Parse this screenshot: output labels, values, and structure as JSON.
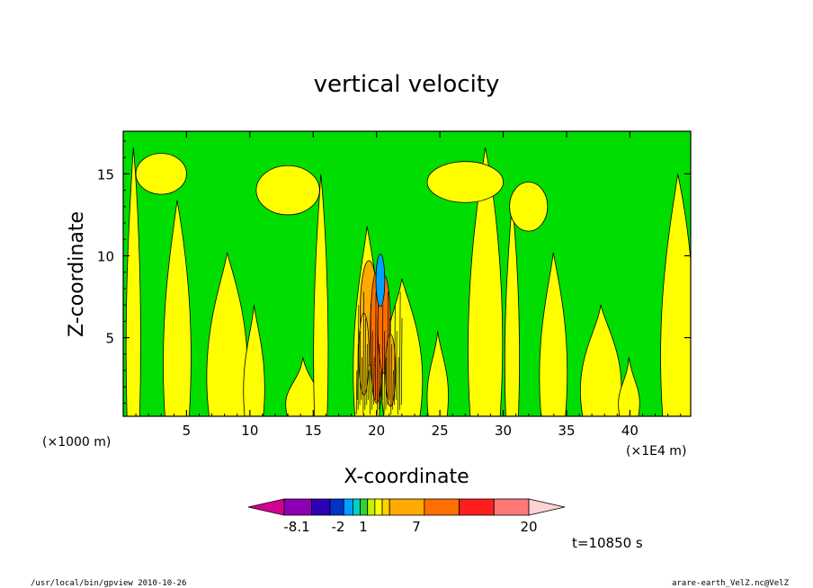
{
  "chart_data": {
    "type": "heatmap",
    "title": "vertical velocity",
    "xlabel": "X-coordinate",
    "ylabel": "Z-coordinate",
    "x_unit_left": "(×1000 m)",
    "x_unit_right": "(×1E4 m)",
    "x_ticks": [
      5,
      10,
      15,
      20,
      25,
      30,
      35,
      40
    ],
    "y_ticks": [
      5,
      10,
      15
    ],
    "xlim": [
      0,
      44.8
    ],
    "ylim": [
      0.2,
      17.6
    ],
    "colorbar": {
      "colors": [
        "#d4008f",
        "#8c00b4",
        "#2d00b4",
        "#0032c8",
        "#00a0ff",
        "#00d2c8",
        "#32d232",
        "#c8f000",
        "#ffff00",
        "#ffd200",
        "#ffaa00",
        "#ff6e00",
        "#ff1e1e",
        "#ff7878",
        "#ffb4b4",
        "#ffd2d2"
      ],
      "labels": [
        "-8.1",
        "-2",
        "1",
        "7",
        "20"
      ]
    },
    "time_label": "t=10850 s",
    "regions": {
      "background_color": "#00dd00",
      "positive_color": "#ffff00",
      "strong_color": "#ff9900"
    }
  },
  "footer": {
    "left": "/usr/local/bin/gpview   2010-10-26",
    "right": "arare-earth_VelZ.nc@VelZ"
  }
}
